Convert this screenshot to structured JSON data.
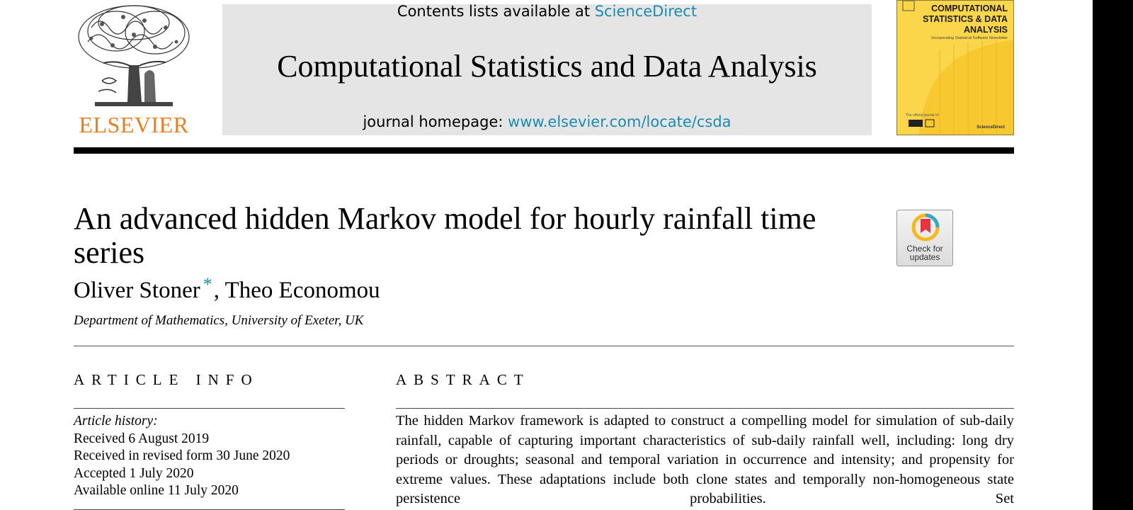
{
  "header": {
    "contents_prefix": "Contents lists available at",
    "contents_link": "ScienceDirect",
    "journal_title": "Computational Statistics and Data Analysis",
    "homepage_prefix": "journal homepage:",
    "homepage_link": "www.elsevier.com/locate/csda",
    "publisher_logo_text": "ELSEVIER",
    "cover": {
      "title": "COMPUTATIONAL STATISTICS & DATA ANALYSIS",
      "subtitle": "Incorporating Statistical Software Newsletter",
      "small_text": "The official journal of",
      "footer": "ScienceDirect"
    }
  },
  "article": {
    "title": "An advanced hidden Markov model for hourly rainfall time series",
    "author_1": "Oliver Stoner",
    "author_1_mark": "*",
    "author_2": ", Theo Economou",
    "affiliation": "Department of Mathematics, University of Exeter, UK",
    "check_updates": "Check for updates"
  },
  "article_info": {
    "heading": "ARTICLE INFO",
    "history_label": "Article history:",
    "received": "Received 6 August 2019",
    "revised": "Received in revised form 30 June 2020",
    "accepted": "Accepted 1 July 2020",
    "online": "Available online 11 July 2020"
  },
  "abstract": {
    "heading": "ABSTRACT",
    "text": "The hidden Markov framework is adapted to construct a compelling model for simulation of sub-daily rainfall, capable of capturing important characteristics of sub-daily rainfall well, including: long dry periods or droughts; seasonal and temporal variation in occurrence and intensity; and propensity for extreme values. These adaptations include both clone states and temporally non-homogeneous state persistence probabilities. Set"
  },
  "colors": {
    "link": "#1b8bb0",
    "elsevier_orange": "#e87f1e",
    "banner_gray": "#e5e5e5",
    "cover_yellow": "#fbd64a"
  }
}
